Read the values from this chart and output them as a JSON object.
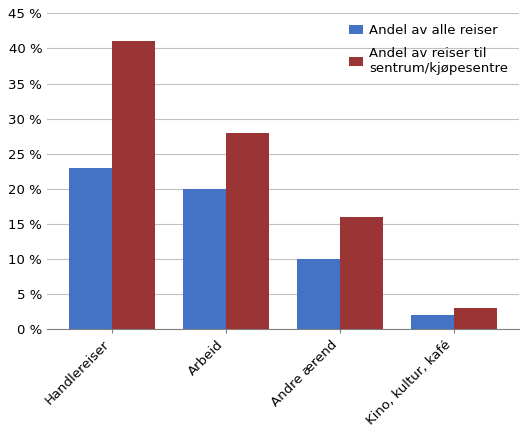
{
  "categories": [
    "Handlereiser",
    "Arbeid",
    "Andre ærend",
    "Kino, kultur, kafé"
  ],
  "series": [
    {
      "label": "Andel av alle reiser",
      "values": [
        0.23,
        0.2,
        0.1,
        0.02
      ],
      "color": "#4472C4"
    },
    {
      "label": "Andel av reiser til\nsentrum/kjøpesentre",
      "values": [
        0.41,
        0.28,
        0.16,
        0.03
      ],
      "color": "#9B3535"
    }
  ],
  "ylim": [
    0,
    0.45
  ],
  "yticks": [
    0.0,
    0.05,
    0.1,
    0.15,
    0.2,
    0.25,
    0.3,
    0.35,
    0.4,
    0.45
  ],
  "background_color": "#ffffff",
  "plot_bg_color": "#ffffff",
  "bar_width": 0.38,
  "legend_fontsize": 9.5,
  "tick_fontsize": 9.5,
  "xlabel_rotation": 45
}
